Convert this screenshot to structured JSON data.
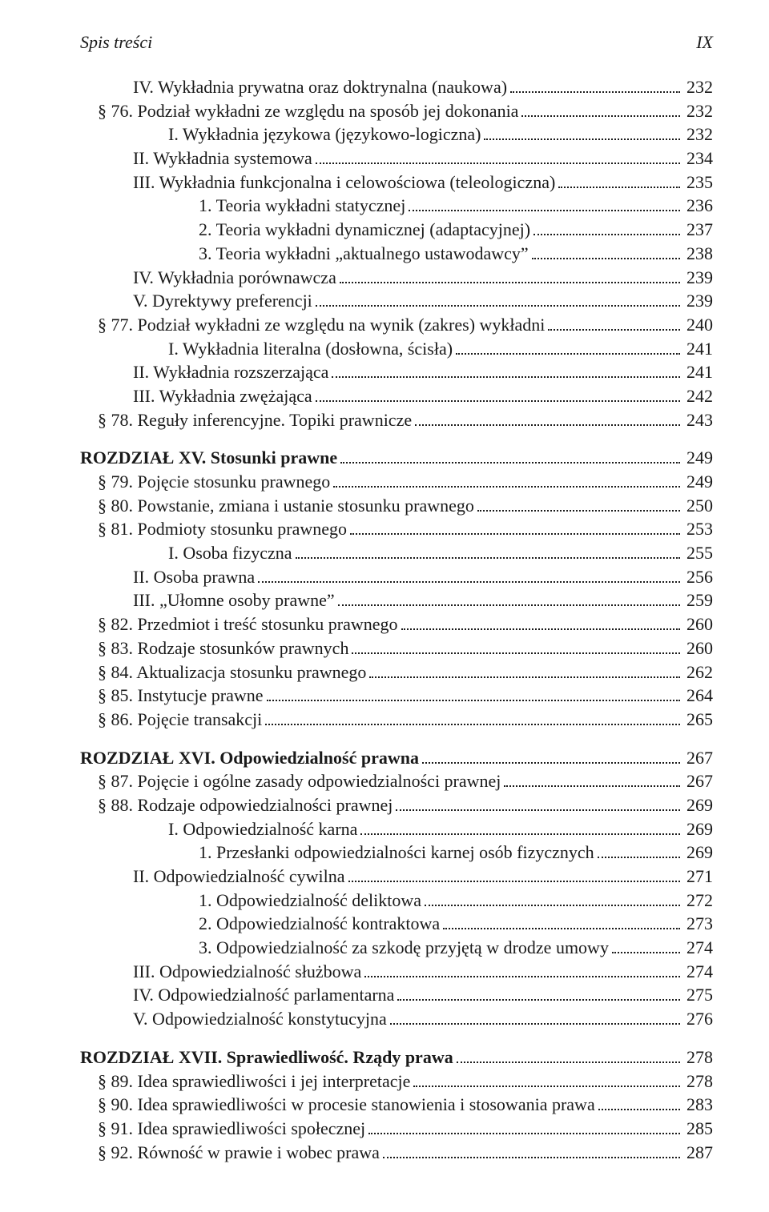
{
  "header": {
    "left": "Spis treści",
    "right": "IX"
  },
  "lines": [
    {
      "indent": 1,
      "label": "IV. Wykładnia prywatna oraz doktrynalna (naukowa)",
      "page": "232"
    },
    {
      "indent": 0,
      "label": "§ 76. Podział wykładni ze względu na sposób jej dokonania",
      "page": "232"
    },
    {
      "indent": 2,
      "label": "I. Wykładnia językowa (językowo-logiczna)",
      "page": "232"
    },
    {
      "indent": 1,
      "label": "II. Wykładnia systemowa",
      "page": "234"
    },
    {
      "indent": 1,
      "label": "III. Wykładnia funkcjonalna i celowościowa (teleologiczna)",
      "page": "235"
    },
    {
      "indent": 3,
      "label": "1. Teoria wykładni statycznej",
      "page": "236"
    },
    {
      "indent": 3,
      "label": "2. Teoria wykładni dynamicznej (adaptacyjnej)",
      "page": "237"
    },
    {
      "indent": 3,
      "label": "3. Teoria wykładni „aktualnego ustawodawcy”",
      "page": "238"
    },
    {
      "indent": 1,
      "label": "IV. Wykładnia porównawcza",
      "page": "239"
    },
    {
      "indent": 1,
      "label": "V. Dyrektywy preferencji",
      "page": "239"
    },
    {
      "indent": 0,
      "label": "§ 77. Podział wykładni ze względu na wynik (zakres) wykładni",
      "page": "240"
    },
    {
      "indent": 2,
      "label": "I. Wykładnia literalna (dosłowna, ścisła)",
      "page": "241"
    },
    {
      "indent": 1,
      "label": "II. Wykładnia rozszerzająca",
      "page": "241"
    },
    {
      "indent": 1,
      "label": "III. Wykładnia zwężająca",
      "page": "242"
    },
    {
      "indent": 0,
      "label": "§ 78. Reguły inferencyjne. Topiki prawnicze",
      "page": "243"
    },
    {
      "chapter": true,
      "boldLabel": "ROZDZIAŁ XV. Stosunki prawne",
      "page": "249"
    },
    {
      "indent": 0,
      "label": "§ 79. Pojęcie stosunku prawnego",
      "page": "249"
    },
    {
      "indent": 0,
      "label": "§ 80. Powstanie, zmiana i ustanie stosunku prawnego",
      "page": "250"
    },
    {
      "indent": 0,
      "label": "§ 81. Podmioty stosunku prawnego",
      "page": "253"
    },
    {
      "indent": 2,
      "label": "I. Osoba fizyczna",
      "page": "255"
    },
    {
      "indent": 1,
      "label": "II. Osoba prawna",
      "page": "256"
    },
    {
      "indent": 1,
      "label": "III. „Ułomne osoby prawne”",
      "page": "259"
    },
    {
      "indent": 0,
      "label": "§ 82. Przedmiot i treść stosunku prawnego",
      "page": "260"
    },
    {
      "indent": 0,
      "label": "§ 83. Rodzaje stosunków prawnych",
      "page": "260"
    },
    {
      "indent": 0,
      "label": "§ 84. Aktualizacja stosunku prawnego",
      "page": "262"
    },
    {
      "indent": 0,
      "label": "§ 85. Instytucje prawne",
      "page": "264"
    },
    {
      "indent": 0,
      "label": "§ 86. Pojęcie transakcji",
      "page": "265"
    },
    {
      "chapter": true,
      "boldLabel": "ROZDZIAŁ XVI. Odpowiedzialność prawna",
      "page": "267"
    },
    {
      "indent": 0,
      "label": "§ 87. Pojęcie i ogólne zasady odpowiedzialności prawnej",
      "page": "267"
    },
    {
      "indent": 0,
      "label": "§ 88. Rodzaje odpowiedzialności prawnej",
      "page": "269"
    },
    {
      "indent": 2,
      "label": "I. Odpowiedzialność karna",
      "page": "269"
    },
    {
      "indent": 3,
      "label": "1. Przesłanki odpowiedzialności karnej osób fizycznych",
      "page": "269"
    },
    {
      "indent": 1,
      "label": "II. Odpowiedzialność cywilna",
      "page": "271"
    },
    {
      "indent": 3,
      "label": "1. Odpowiedzialność deliktowa",
      "page": "272"
    },
    {
      "indent": 3,
      "label": "2. Odpowiedzialność kontraktowa",
      "page": "273"
    },
    {
      "indent": 3,
      "label": "3. Odpowiedzialność za szkodę przyjętą w drodze umowy",
      "page": "274"
    },
    {
      "indent": 1,
      "label": "III. Odpowiedzialność służbowa",
      "page": "274"
    },
    {
      "indent": 1,
      "label": "IV. Odpowiedzialność parlamentarna",
      "page": "275"
    },
    {
      "indent": 1,
      "label": "V. Odpowiedzialność konstytucyjna",
      "page": "276"
    },
    {
      "chapter": true,
      "boldLabel": "ROZDZIAŁ XVII. Sprawiedliwość. Rządy prawa",
      "page": "278"
    },
    {
      "indent": 0,
      "label": "§ 89. Idea sprawiedliwości i jej interpretacje",
      "page": "278"
    },
    {
      "indent": 0,
      "label": "§ 90. Idea sprawiedliwości w procesie stanowienia i stosowania prawa",
      "page": "283"
    },
    {
      "indent": 0,
      "label": "§ 91. Idea sprawiedliwości społecznej",
      "page": "285"
    },
    {
      "indent": 0,
      "label": "§ 92. Równość w prawie i wobec prawa",
      "page": "287"
    }
  ]
}
